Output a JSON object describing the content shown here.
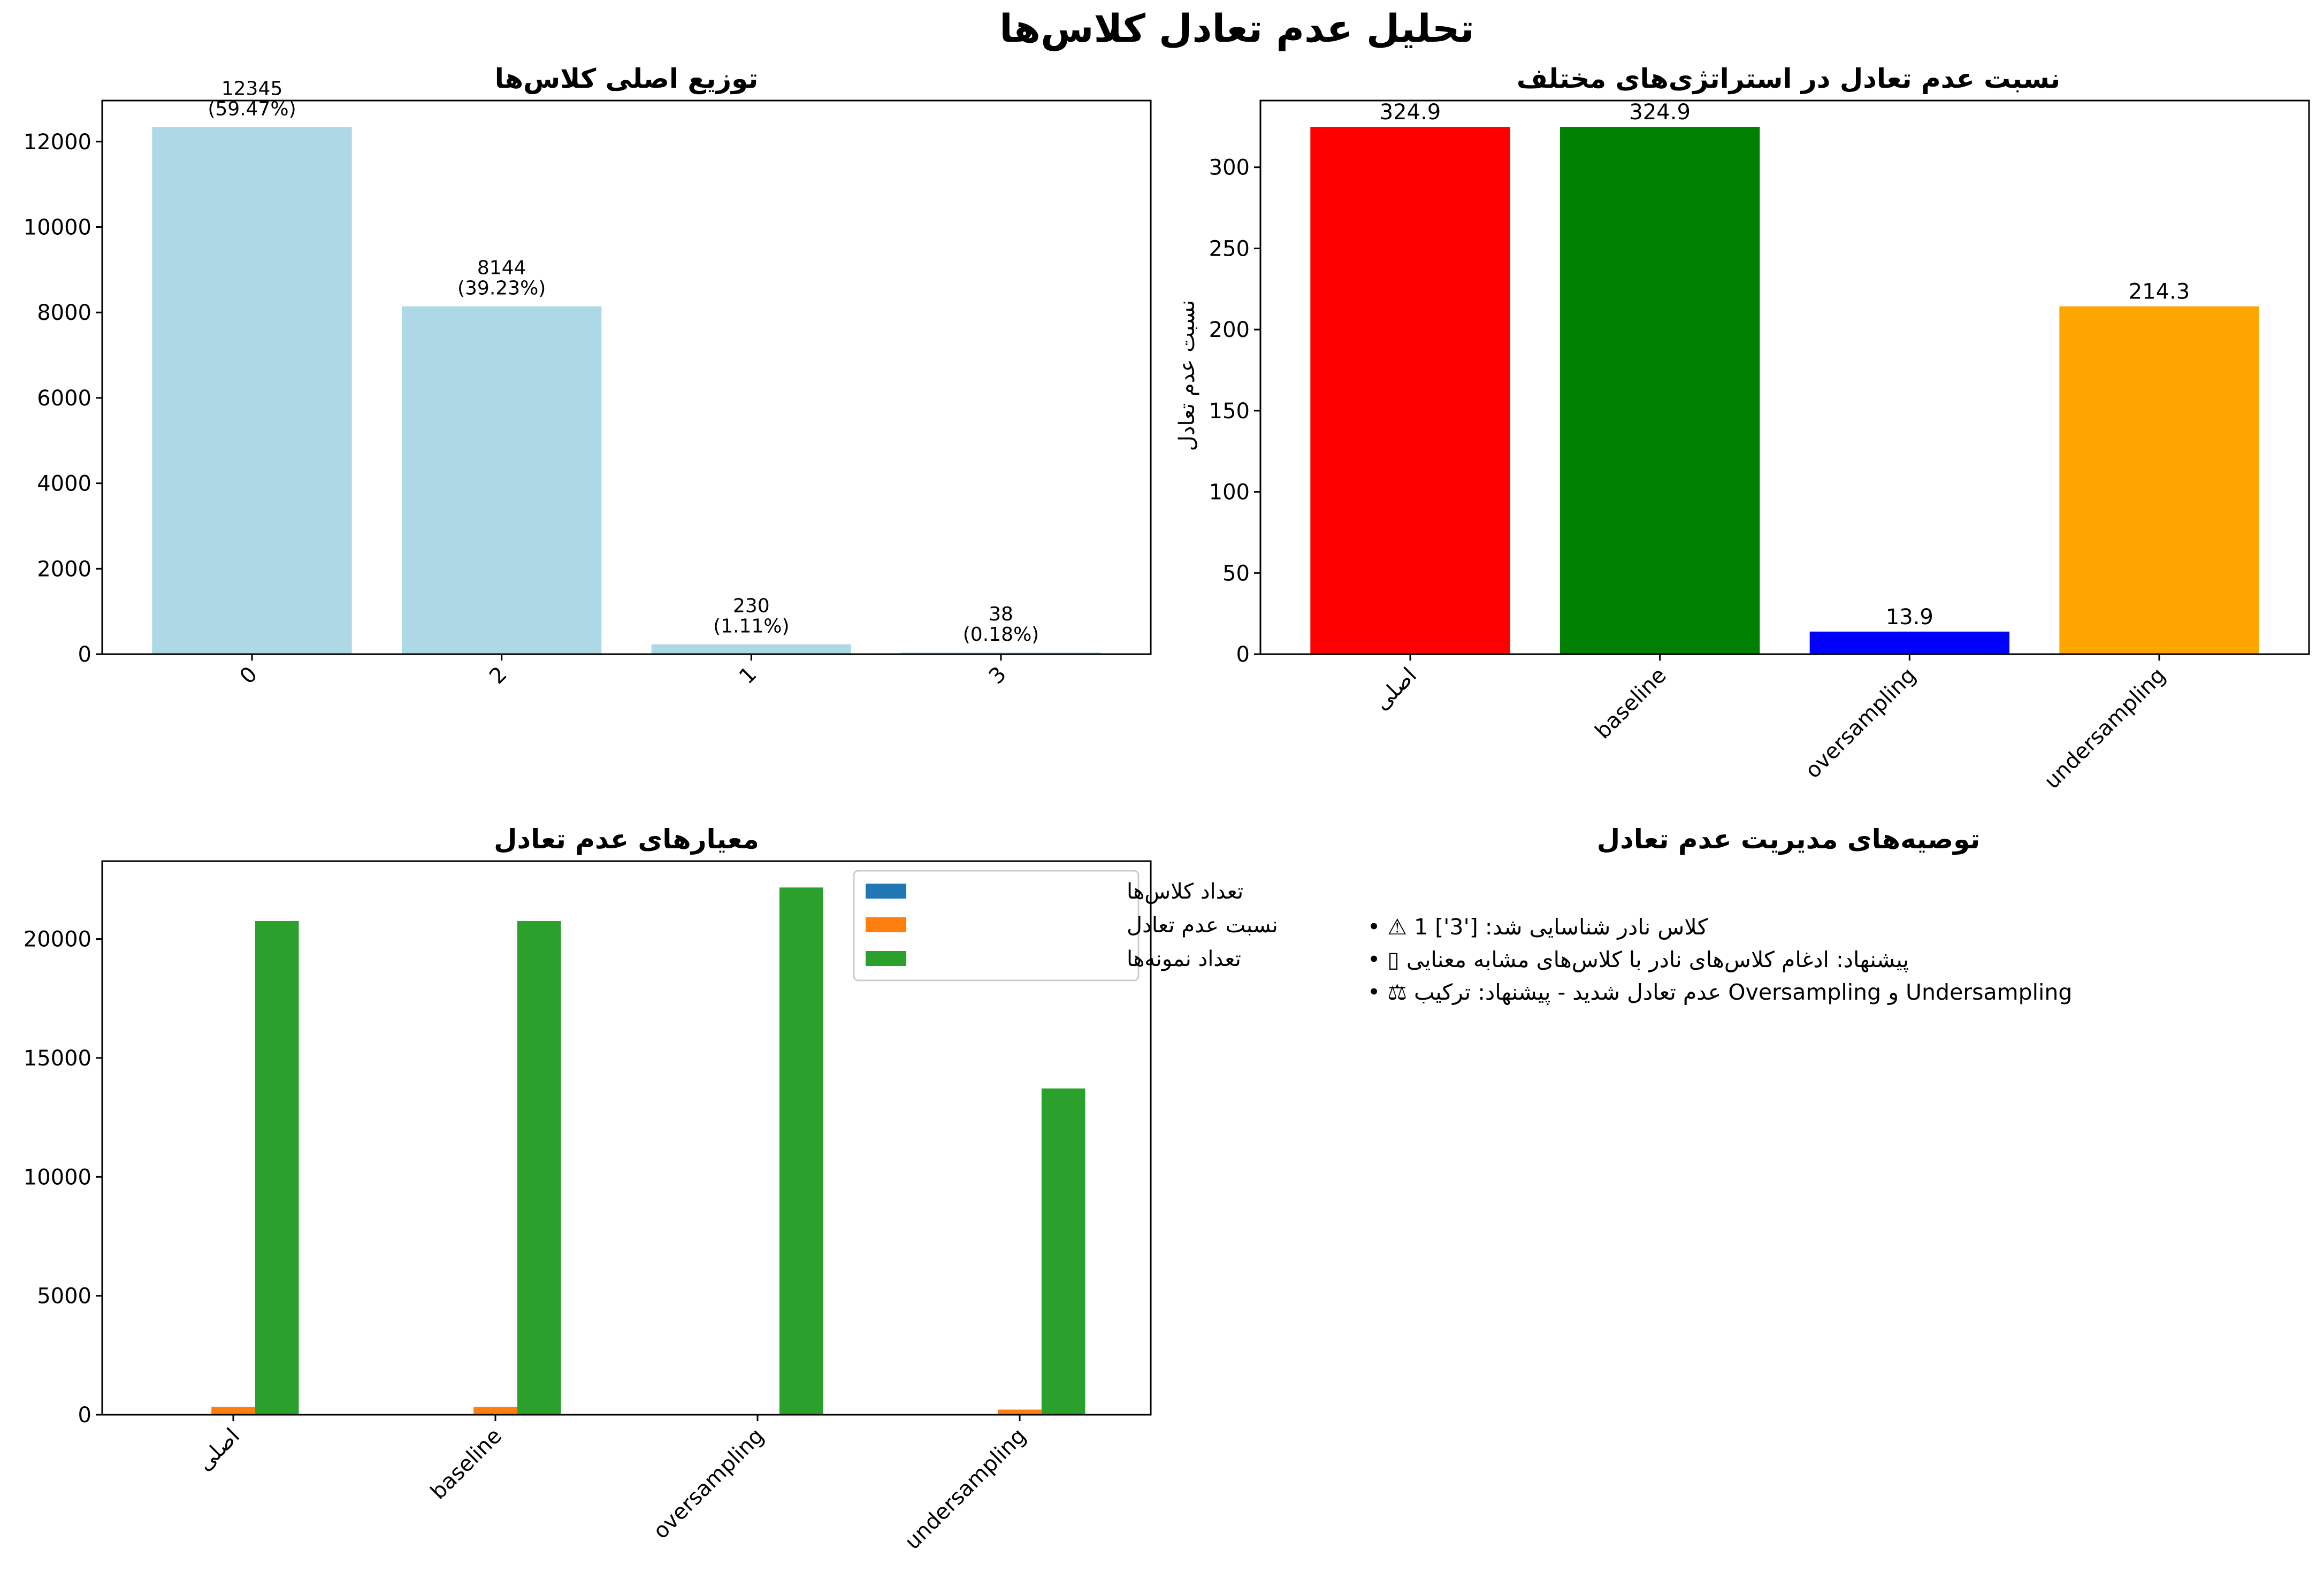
{
  "suptitle": "تحلیل عدم تعادل کلاس‌ها",
  "colors": {
    "dist_bar": "#add8e6",
    "strategy_bars": [
      "#ff0000",
      "#008000",
      "#0000ff",
      "#ffa500"
    ],
    "series": [
      "#1f77b4",
      "#ff7f0e",
      "#2ca02c"
    ]
  },
  "chart_data": [
    {
      "type": "bar",
      "title": "توزیع اصلی کلاس‌ها",
      "xlabel": "",
      "ylabel": "",
      "categories": [
        "0",
        "2",
        "1",
        "3"
      ],
      "values": [
        12345,
        8144,
        230,
        38
      ],
      "bar_labels": [
        [
          "12345",
          "(59.47%)"
        ],
        [
          "8144",
          "(39.23%)"
        ],
        [
          "230",
          "(1.11%)"
        ],
        [
          "38",
          "(0.18%)"
        ]
      ],
      "ylim": [
        0,
        12962
      ],
      "yticks": [
        0,
        2000,
        4000,
        6000,
        8000,
        10000,
        12000
      ],
      "grid": false
    },
    {
      "type": "bar",
      "title": "نسبت عدم تعادل در استراتژی‌های مختلف",
      "xlabel": "",
      "ylabel": "نسبت عدم تعادل",
      "categories": [
        "اصلی",
        "baseline",
        "oversampling",
        "undersampling"
      ],
      "values": [
        324.9,
        324.9,
        13.9,
        214.3
      ],
      "bar_labels": [
        "324.9",
        "324.9",
        "13.9",
        "214.3"
      ],
      "ylim": [
        0,
        341.1
      ],
      "yticks": [
        0,
        50,
        100,
        150,
        200,
        250,
        300
      ],
      "grid": false
    },
    {
      "type": "bar",
      "title": "معیارهای عدم تعادل",
      "xlabel": "",
      "ylabel": "",
      "categories": [
        "اصلی",
        "baseline",
        "oversampling",
        "undersampling"
      ],
      "series": [
        {
          "name": "تعداد کلاس‌ها",
          "values": [
            4,
            4,
            4,
            4
          ]
        },
        {
          "name": "نسبت عدم تعادل",
          "values": [
            324.9,
            324.9,
            13.9,
            214.3
          ]
        },
        {
          "name": "تعداد نمونه‌ها",
          "values": [
            20757,
            20757,
            22166,
            13715
          ]
        }
      ],
      "ylim": [
        0,
        23274
      ],
      "yticks": [
        0,
        5000,
        10000,
        15000,
        20000
      ],
      "legend": "top-right",
      "grid": false
    }
  ],
  "recommendations": {
    "title": "توصیه‌های مدیریت عدم تعادل",
    "items": [
      "• ⚠  1 کلاس نادر شناسایی شد: ['3']",
      "• ▯ پیشنهاد: ادغام کلاس‌های نادر با کلاس‌های مشابه معنایی",
      "• ⚖  عدم تعادل شدید - پیشنهاد: ترکیب Oversampling و Undersampling"
    ]
  }
}
